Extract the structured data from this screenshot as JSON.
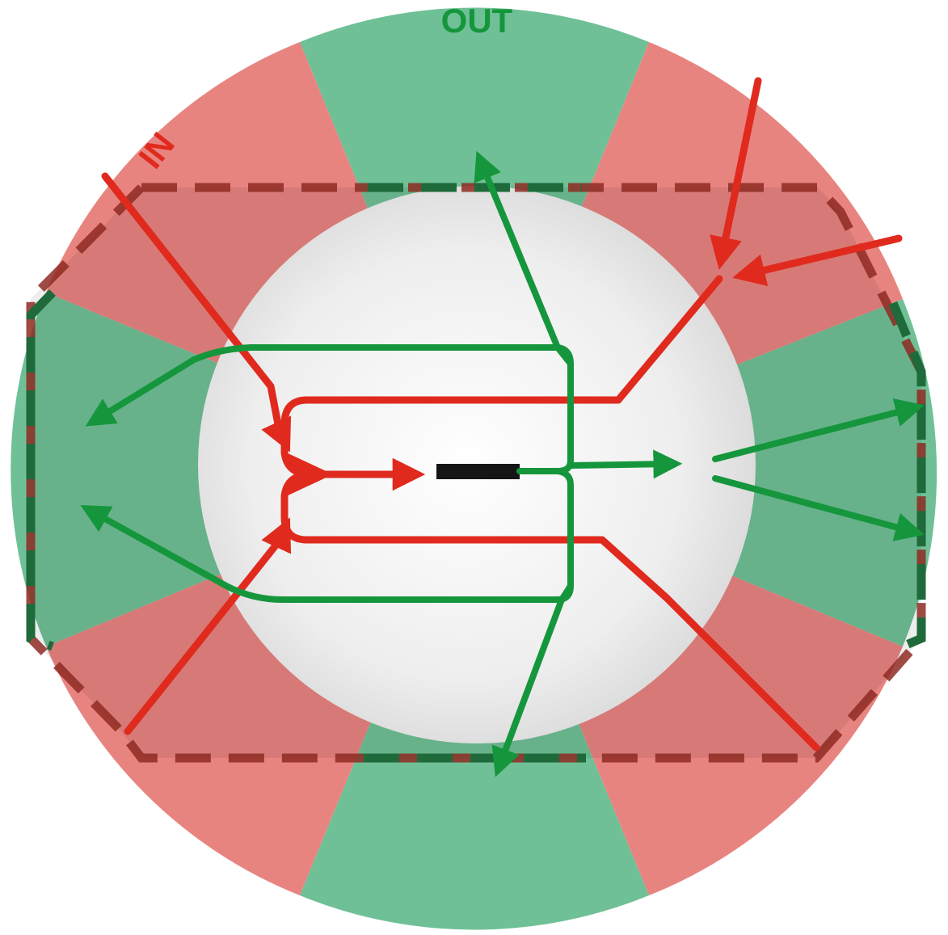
{
  "labels": {
    "in": "IN",
    "out": "OUT"
  },
  "colors": {
    "in_zone": "#e88480",
    "out_zone": "#6fc096",
    "in_path": "#e02a1e",
    "out_path": "#15963c",
    "inner_disc": "#e6e6e6",
    "boundary_in": "#8e2a22",
    "boundary_out": "#1e6a3a",
    "center_bar": "#151515"
  }
}
